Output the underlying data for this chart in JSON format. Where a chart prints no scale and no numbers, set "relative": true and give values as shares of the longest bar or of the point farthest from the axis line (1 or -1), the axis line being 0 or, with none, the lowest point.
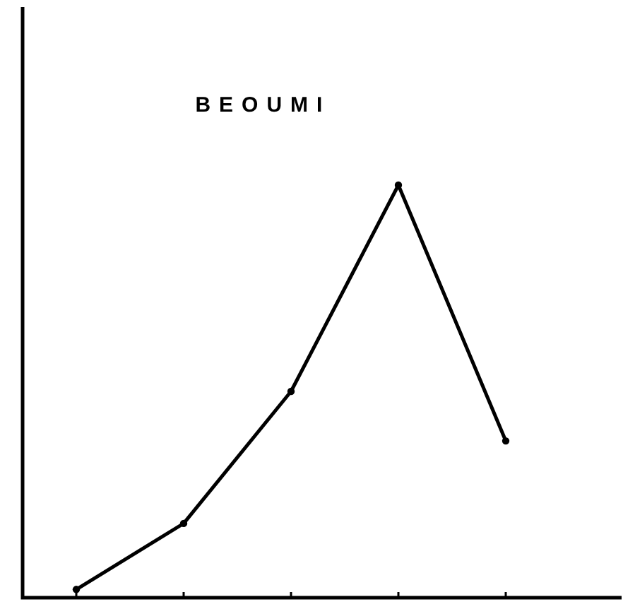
{
  "chart_data": {
    "type": "line",
    "title": "BEOUMI",
    "categories": [
      null,
      null,
      null,
      null,
      null
    ],
    "values": [
      0.02,
      0.18,
      0.5,
      1,
      0.38
    ],
    "color": "#000000",
    "relative": true,
    "marker": "circle"
  }
}
